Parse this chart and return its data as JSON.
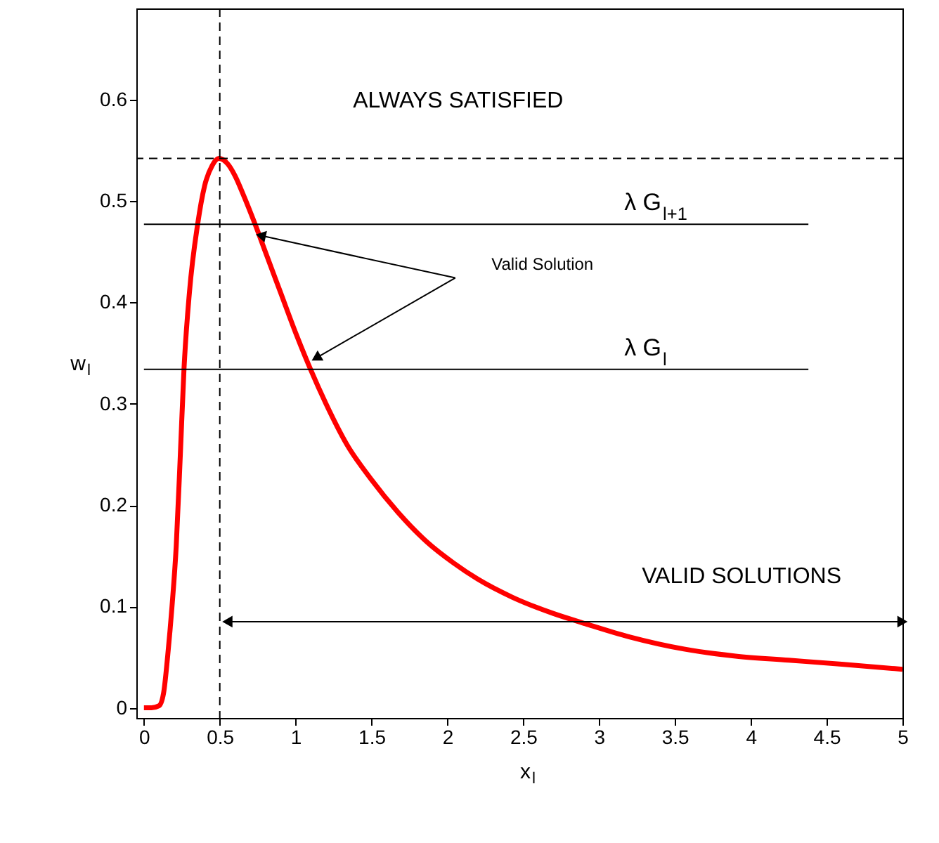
{
  "chart_data": {
    "type": "line",
    "xlabel": "x$_{l}$",
    "ylabel": "w$_{l}$",
    "xlim": [
      -0.05,
      5.0
    ],
    "ylim": [
      -0.01,
      0.69
    ],
    "xticks": [
      0,
      0.5,
      1,
      1.5,
      2,
      2.5,
      3,
      3.5,
      4,
      4.5,
      5
    ],
    "yticks": [
      0,
      0.1,
      0.2,
      0.3,
      0.4,
      0.5,
      0.6
    ],
    "grid": false,
    "marker": "none",
    "series": [
      {
        "color": "#ff0000",
        "x": [
          0,
          0.05,
          0.1,
          0.13,
          0.157,
          0.185,
          0.213,
          0.24,
          0.264,
          0.3,
          0.354,
          0.4,
          0.45,
          0.494,
          0.55,
          0.6,
          0.65,
          0.733,
          0.8,
          0.9,
          1.0,
          1.098,
          1.2,
          1.337,
          1.5,
          1.674,
          1.87,
          2.04,
          2.2,
          2.43,
          2.7,
          2.91,
          3.2,
          3.56,
          3.9,
          4.25,
          4.6,
          5.0
        ],
        "values": [
          0,
          0,
          0.002,
          0.015,
          0.052,
          0.1,
          0.16,
          0.25,
          0.334,
          0.41,
          0.477,
          0.515,
          0.535,
          0.542,
          0.537,
          0.525,
          0.508,
          0.477,
          0.45,
          0.41,
          0.37,
          0.334,
          0.3,
          0.26,
          0.225,
          0.193,
          0.163,
          0.143,
          0.127,
          0.109,
          0.093,
          0.083,
          0.07,
          0.058,
          0.051,
          0.047,
          0.043,
          0.038
        ]
      },
      {
        "color": "#000000",
        "line_style": "solid",
        "x": [
          0,
          4.38
        ],
        "values": [
          0.477,
          0.477
        ]
      },
      {
        "color": "#000000",
        "line_style": "solid",
        "x": [
          0,
          4.38
        ],
        "values": [
          0.334,
          0.334
        ]
      },
      {
        "color": "#000000",
        "line_style": "solid",
        "marker": "triangle",
        "x": [
          0.55,
          5.0
        ],
        "values": [
          0.085,
          0.085
        ]
      }
    ],
    "ref_lines": [
      {
        "axis": "y",
        "value": 0.542,
        "line_style": "dashed",
        "color": "#000000"
      },
      {
        "axis": "x",
        "value": 0.5,
        "line_style": "dashed",
        "color": "#000000"
      }
    ],
    "annotations": [
      "ALWAYS SATISFIED",
      {
        "text": "λ G$_{l+1}$",
        "x": 3.3,
        "y": 0.477
      },
      {
        "text": "λ G$_{l}$",
        "x": 3.3,
        "y": 0.334
      },
      "Valid Solution",
      "VALID SOLUTIONS"
    ]
  }
}
